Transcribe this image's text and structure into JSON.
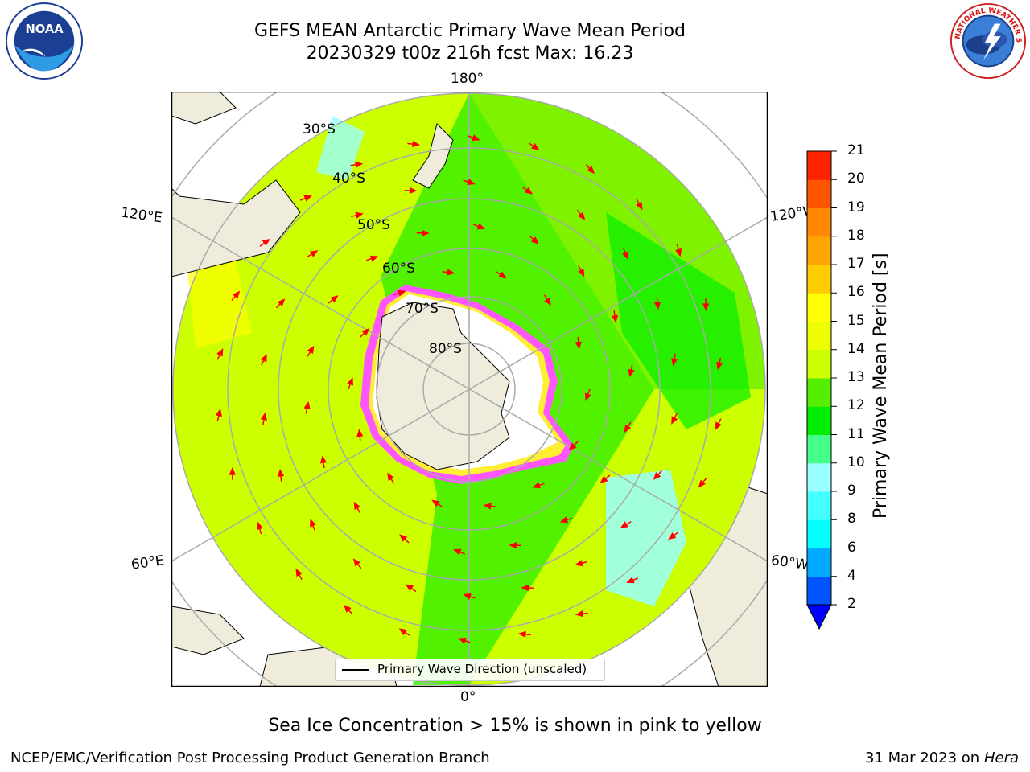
{
  "title": {
    "line1": "GEFS MEAN Antarctic Primary Wave Mean Period",
    "line2": "20230329 t00z 216h fcst   Max: 16.23"
  },
  "logos": {
    "left": "NOAA",
    "right": "NATIONAL WEATHER SERVICE"
  },
  "map": {
    "projection": "south-polar-stereographic",
    "lon_labels": {
      "top": "180°",
      "left_upper": "120°E",
      "right_upper": "120°W",
      "left_lower": "60°E",
      "right_lower": "60°W",
      "bottom": "0°"
    },
    "lat_labels": [
      "30°S",
      "40°S",
      "50°S",
      "60°S",
      "70°S",
      "80°S"
    ],
    "legend": "Primary Wave Direction (unscaled)",
    "colors": {
      "land": "#efecdc",
      "ice_low": "#ff33ff",
      "ice_high": "#ffee33"
    }
  },
  "colorbar": {
    "label": "Primary Wave Mean Period [s]",
    "ticks": [
      "2",
      "4",
      "6",
      "8",
      "9",
      "10",
      "11",
      "12",
      "13",
      "14",
      "15",
      "16",
      "17",
      "18",
      "19",
      "20",
      "21"
    ],
    "colors": [
      "#0055ff",
      "#00aaff",
      "#00ffff",
      "#44ffff",
      "#99ffff",
      "#44ff88",
      "#00ee00",
      "#55ee00",
      "#ccff00",
      "#eeff00",
      "#ffff00",
      "#ffcc00",
      "#ffa500",
      "#ff8800",
      "#ff5500",
      "#ff2200"
    ],
    "extend_color": "#0000ff"
  },
  "note": "Sea Ice Concentration > 15% is shown in pink to yellow",
  "footer": {
    "left": "NCEP/EMC/Verification Post Processing Product Generation Branch",
    "right_date": "31 Mar 2023 on",
    "right_machine": "Hera"
  }
}
